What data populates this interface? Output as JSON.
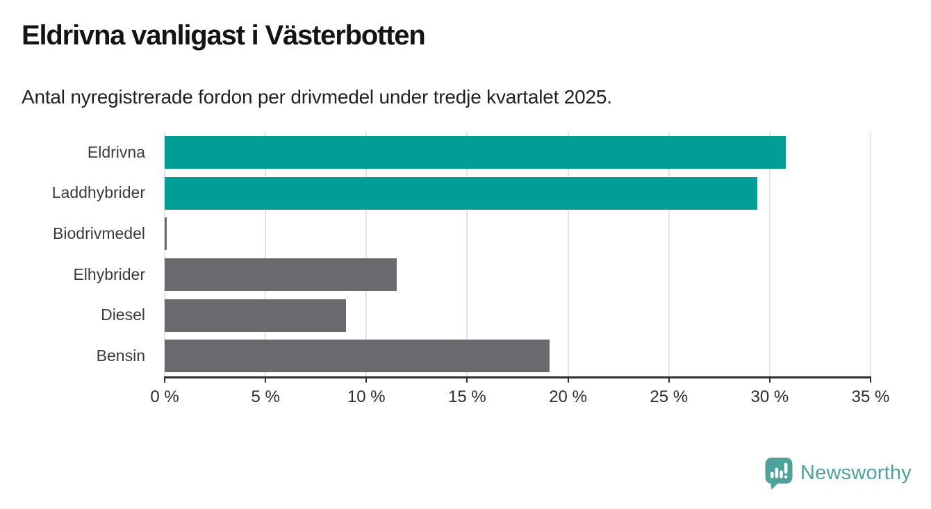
{
  "header": {
    "title": "Eldrivna vanligast i Västerbotten",
    "subtitle": "Antal nyregistrerade fordon per drivmedel under tredje kvartalet 2025."
  },
  "chart_data": {
    "type": "bar",
    "orientation": "horizontal",
    "title": "Eldrivna vanligast i Västerbotten",
    "subtitle": "Antal nyregistrerade fordon per drivmedel under tredje kvartalet 2025.",
    "categories": [
      "Eldrivna",
      "Laddhybrider",
      "Biodrivmedel",
      "Elhybrider",
      "Diesel",
      "Bensin"
    ],
    "values": [
      30.8,
      29.4,
      0.1,
      11.5,
      9.0,
      19.1
    ],
    "unit": "%",
    "bar_colors": [
      "#009E94",
      "#009E94",
      "#6A6A6E",
      "#6A6A6E",
      "#6A6A6E",
      "#6A6A6E"
    ],
    "xlabel": "",
    "ylabel": "",
    "xlim": [
      0,
      35
    ],
    "x_ticks": [
      0,
      5,
      10,
      15,
      20,
      25,
      30,
      35
    ],
    "x_tick_labels": [
      "0 %",
      "5 %",
      "10 %",
      "15 %",
      "20 %",
      "25 %",
      "30 %",
      "35 %"
    ],
    "grid": true,
    "legend": "none"
  },
  "colors": {
    "accent_teal": "#009E94",
    "bar_gray": "#6A6A6E",
    "gridline": "#E3E3E3",
    "axis": "#2E2E2E",
    "title_text": "#141414",
    "subtitle_text": "#212121",
    "label_text": "#3A3A3A",
    "logo_teal": "#4FA29B"
  },
  "branding": {
    "logo_icon": "newsworthy-logo-icon",
    "logo_text": "Newsworthy"
  }
}
